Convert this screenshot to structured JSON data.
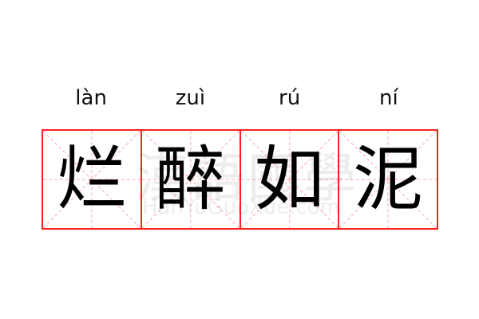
{
  "pinyin": [
    "làn",
    "zuì",
    "rú",
    "ní"
  ],
  "characters": [
    "烂",
    "醉",
    "如",
    "泥"
  ],
  "watermark": {
    "chinese": "漢語國學",
    "latin": "HanYuGuoXue.com"
  },
  "colors": {
    "grid_border": "#ff2222",
    "guide_lines": "#ffaaaa",
    "text": "#000000"
  }
}
